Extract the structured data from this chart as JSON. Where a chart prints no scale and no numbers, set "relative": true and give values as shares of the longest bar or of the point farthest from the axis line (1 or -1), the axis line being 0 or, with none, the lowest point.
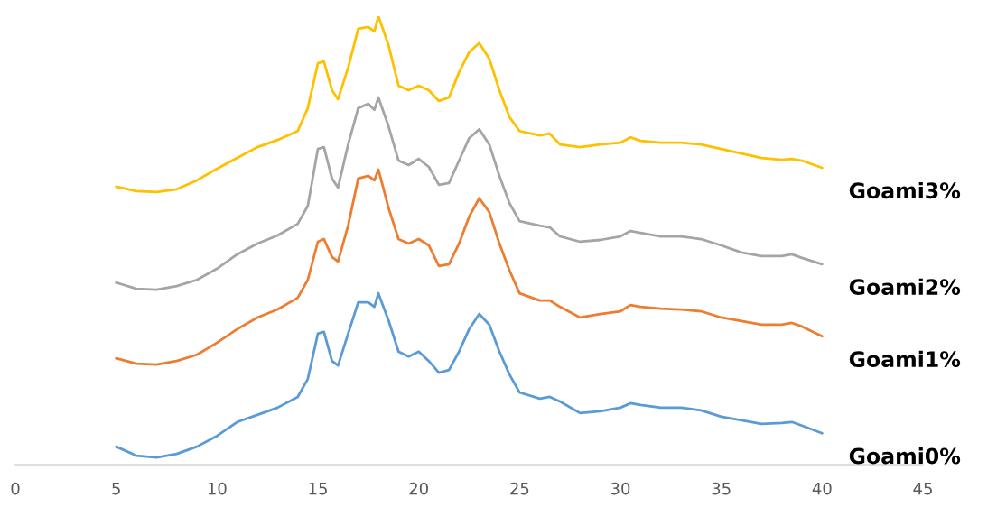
{
  "chart_data": {
    "type": "line",
    "relative": true,
    "xlim": [
      0,
      45
    ],
    "xticks": [
      0,
      5,
      10,
      15,
      20,
      25,
      30,
      35,
      40,
      45
    ],
    "grid": false,
    "legend": false,
    "marker": "none",
    "line_style": "solid",
    "x": [
      5,
      6,
      7,
      8,
      9,
      10,
      11,
      12,
      13,
      14,
      14.5,
      15,
      15.3,
      15.7,
      16,
      16.5,
      17,
      17.5,
      17.8,
      18,
      18.5,
      19,
      19.5,
      20,
      20.5,
      21,
      21.5,
      22,
      22.5,
      23,
      23.5,
      24,
      24.5,
      25,
      26,
      26.5,
      27,
      28,
      29,
      30,
      30.5,
      31,
      32,
      33,
      34,
      35,
      36,
      37,
      38,
      38.5,
      39,
      40
    ],
    "series": [
      {
        "name": "Goami0%",
        "color": "#5b9bd5",
        "values": [
          0.04,
          0.02,
          0.016,
          0.024,
          0.04,
          0.064,
          0.095,
          0.111,
          0.127,
          0.151,
          0.191,
          0.292,
          0.296,
          0.231,
          0.221,
          0.292,
          0.362,
          0.362,
          0.352,
          0.382,
          0.322,
          0.252,
          0.241,
          0.252,
          0.231,
          0.205,
          0.211,
          0.252,
          0.302,
          0.336,
          0.312,
          0.252,
          0.201,
          0.161,
          0.147,
          0.151,
          0.141,
          0.115,
          0.119,
          0.127,
          0.137,
          0.133,
          0.127,
          0.127,
          0.121,
          0.107,
          0.099,
          0.091,
          0.093,
          0.095,
          0.087,
          0.07
        ]
      },
      {
        "name": "Goami1%",
        "color": "#ed7d31",
        "values": [
          0.237,
          0.225,
          0.223,
          0.231,
          0.245,
          0.272,
          0.302,
          0.328,
          0.346,
          0.372,
          0.412,
          0.497,
          0.503,
          0.463,
          0.453,
          0.533,
          0.638,
          0.644,
          0.634,
          0.658,
          0.573,
          0.503,
          0.493,
          0.503,
          0.489,
          0.443,
          0.447,
          0.493,
          0.553,
          0.594,
          0.563,
          0.493,
          0.433,
          0.382,
          0.366,
          0.366,
          0.352,
          0.328,
          0.336,
          0.342,
          0.356,
          0.352,
          0.348,
          0.346,
          0.342,
          0.328,
          0.32,
          0.312,
          0.312,
          0.316,
          0.308,
          0.286
        ]
      },
      {
        "name": "Goami2%",
        "color": "#a5a5a5",
        "values": [
          0.406,
          0.392,
          0.39,
          0.398,
          0.412,
          0.437,
          0.469,
          0.493,
          0.511,
          0.537,
          0.577,
          0.704,
          0.708,
          0.638,
          0.618,
          0.714,
          0.795,
          0.805,
          0.791,
          0.819,
          0.755,
          0.678,
          0.668,
          0.682,
          0.664,
          0.624,
          0.628,
          0.678,
          0.728,
          0.748,
          0.714,
          0.644,
          0.583,
          0.543,
          0.533,
          0.529,
          0.509,
          0.497,
          0.501,
          0.509,
          0.521,
          0.517,
          0.509,
          0.509,
          0.503,
          0.489,
          0.473,
          0.465,
          0.465,
          0.469,
          0.461,
          0.447
        ]
      },
      {
        "name": "Goami3%",
        "color": "#ffc000",
        "values": [
          0.62,
          0.61,
          0.608,
          0.614,
          0.634,
          0.66,
          0.684,
          0.708,
          0.724,
          0.744,
          0.795,
          0.895,
          0.899,
          0.835,
          0.815,
          0.885,
          0.972,
          0.976,
          0.966,
          1.0,
          0.936,
          0.845,
          0.835,
          0.845,
          0.835,
          0.811,
          0.819,
          0.875,
          0.92,
          0.94,
          0.905,
          0.835,
          0.775,
          0.744,
          0.734,
          0.738,
          0.714,
          0.708,
          0.714,
          0.718,
          0.73,
          0.722,
          0.718,
          0.718,
          0.714,
          0.704,
          0.694,
          0.684,
          0.68,
          0.682,
          0.678,
          0.662
        ]
      }
    ]
  }
}
